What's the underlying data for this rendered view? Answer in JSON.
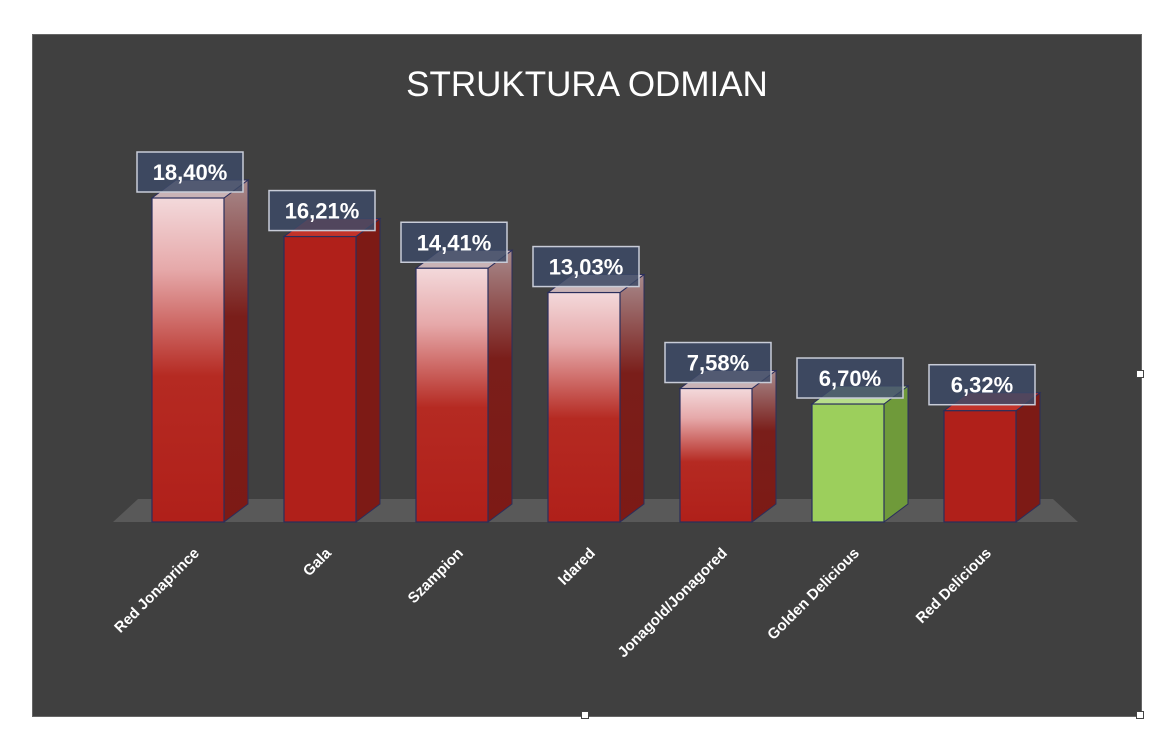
{
  "chart_data": {
    "type": "bar",
    "title": "STRUKTURA ODMIAN",
    "categories": [
      "Red Jonaprince",
      "Gala",
      "Szampion",
      "Idared",
      "Jonagold/Jonagored",
      "Golden Delicious",
      "Red Delicious"
    ],
    "values": [
      18.4,
      16.21,
      14.41,
      13.03,
      7.58,
      6.7,
      6.32
    ],
    "data_labels": [
      "18,40%",
      "16,21%",
      "14,41%",
      "13,03%",
      "7,58%",
      "6,70%",
      "6,32%"
    ],
    "styles": [
      "gradient",
      "solid",
      "gradient",
      "gradient",
      "gradient",
      "solid-green",
      "solid"
    ],
    "xlabel": "",
    "ylabel": "",
    "ylim": [
      0,
      20
    ],
    "grid": false,
    "legend": "none"
  },
  "colors": {
    "background": "#404040",
    "bar_red": "#b0201a",
    "bar_green": "#9ccf5c",
    "label_box": "#3d4a66",
    "text": "#ffffff"
  }
}
